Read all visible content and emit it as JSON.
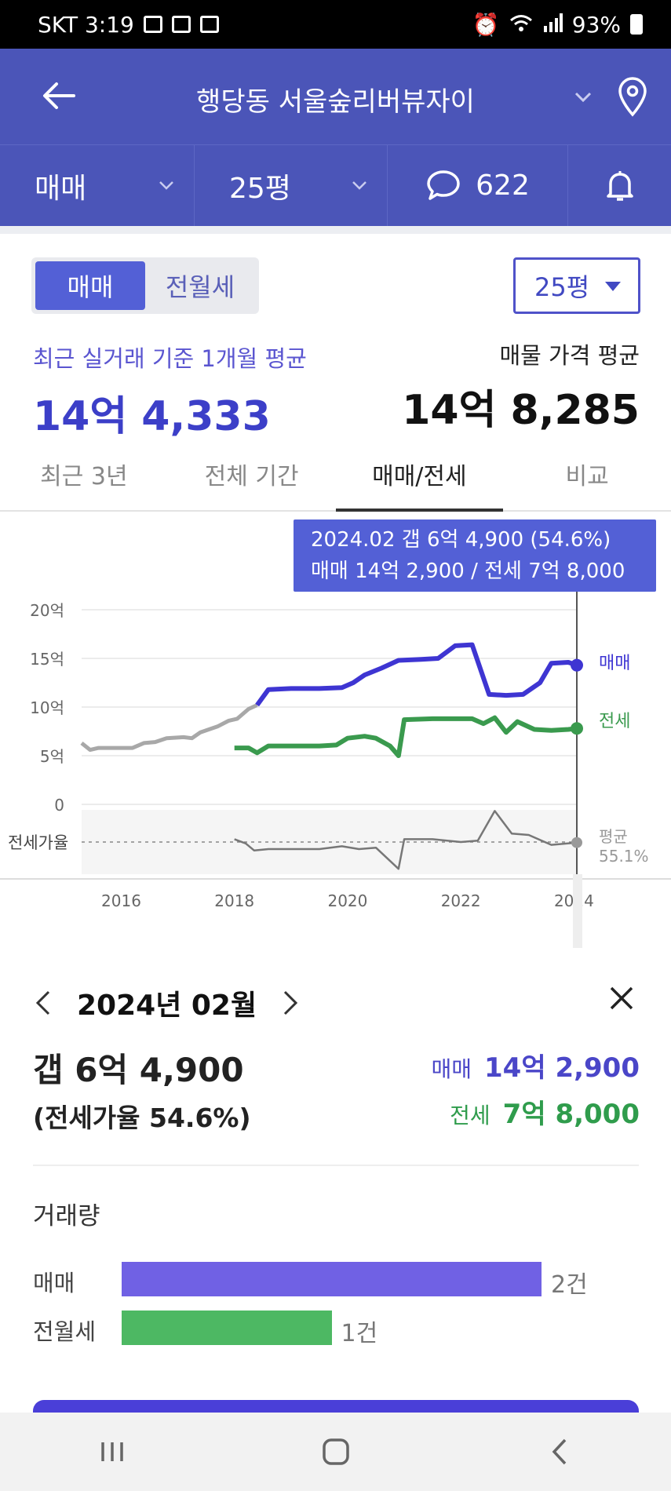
{
  "status_bar": {
    "carrier_time": "SKT 3:19",
    "battery": "93%"
  },
  "header": {
    "title": "행당동 서울숲리버뷰자이"
  },
  "subbar": {
    "deal_type": "매매",
    "size": "25평",
    "comment_count": "622"
  },
  "segment": {
    "options": [
      "매매",
      "전월세"
    ],
    "selected": "매매"
  },
  "size_select": {
    "value": "25평"
  },
  "summary": {
    "recent_label": "최근 실거래 기준 1개월 평균",
    "recent_value": "14억 4,333",
    "listing_label": "매물 가격 평균",
    "listing_value": "14억 8,285"
  },
  "tabs": [
    "최근 3년",
    "전체 기간",
    "매매/전세",
    "비교"
  ],
  "tooltip": {
    "line1": "2024.02  갭 6억 4,900 (54.6%)",
    "line2": "매매 14억 2,900 / 전세 7억 8,000"
  },
  "chart_data": {
    "type": "line",
    "y_ticks": [
      "20억",
      "15억",
      "10억",
      "5억",
      "0"
    ],
    "x_ticks": [
      "2016",
      "2018",
      "2020",
      "2022",
      "2024"
    ],
    "ratio_label": "전세가율",
    "avg_label": "평균",
    "avg_value": "55.1%",
    "series_labels": {
      "sale": "매매",
      "jeonse": "전세"
    },
    "colors": {
      "sale": "#3e35d2",
      "jeonse": "#3a9a4e",
      "history": "#a8a8a8",
      "ratio": "#777777"
    },
    "ylim": [
      0,
      20
    ],
    "xlim": [
      2015.3,
      2024.5
    ],
    "history": {
      "x": [
        2015.3,
        2015.45,
        2015.6,
        2016.0,
        2016.2,
        2016.4,
        2016.6,
        2016.8,
        2017.1,
        2017.25,
        2017.4,
        2017.7,
        2017.9,
        2018.05,
        2018.25,
        2018.4
      ],
      "y": [
        6.3,
        5.6,
        5.8,
        5.8,
        5.8,
        6.3,
        6.4,
        6.8,
        6.9,
        6.8,
        7.4,
        8.0,
        8.6,
        8.8,
        9.8,
        10.2
      ]
    },
    "sale": {
      "x": [
        2018.4,
        2018.6,
        2019.0,
        2019.5,
        2019.9,
        2020.1,
        2020.3,
        2020.6,
        2020.9,
        2021.3,
        2021.6,
        2021.9,
        2022.2,
        2022.5,
        2022.8,
        2023.1,
        2023.4,
        2023.6,
        2023.9,
        2024.05
      ],
      "y": [
        10.2,
        11.8,
        11.9,
        11.9,
        12.0,
        12.5,
        13.3,
        14.0,
        14.8,
        14.9,
        15.0,
        16.3,
        16.4,
        11.3,
        11.2,
        11.3,
        12.5,
        14.5,
        14.6,
        14.3
      ]
    },
    "jeonse": {
      "x": [
        2018.0,
        2018.25,
        2018.4,
        2018.6,
        2019.0,
        2019.5,
        2019.8,
        2020.0,
        2020.3,
        2020.5,
        2020.75,
        2020.9,
        2021.0,
        2021.5,
        2022.0,
        2022.2,
        2022.4,
        2022.6,
        2022.8,
        2023.0,
        2023.3,
        2023.6,
        2023.9,
        2024.05
      ],
      "y": [
        5.8,
        5.8,
        5.3,
        6.0,
        6.0,
        6.0,
        6.1,
        6.8,
        7.0,
        6.8,
        6.0,
        5.0,
        8.7,
        8.8,
        8.8,
        8.8,
        8.3,
        8.9,
        7.4,
        8.5,
        7.7,
        7.6,
        7.7,
        7.8
      ]
    },
    "gap_ratio": {
      "x": [
        2018.0,
        2018.2,
        2018.35,
        2018.6,
        2019.0,
        2019.5,
        2019.9,
        2020.2,
        2020.5,
        2020.9,
        2021.0,
        2021.5,
        2022.0,
        2022.3,
        2022.6,
        2022.9,
        2023.2,
        2023.6,
        2024.05
      ],
      "y": [
        57,
        54,
        49,
        50,
        50,
        50,
        52,
        50,
        51,
        36,
        57,
        57,
        55,
        56,
        77,
        61,
        60,
        53,
        54.6
      ]
    }
  },
  "detail": {
    "date": "2024년 02월",
    "gap": "갭 6억 4,900",
    "ratio": "(전세가율 54.6%)",
    "sale_label": "매매",
    "sale_value": "14억 2,900",
    "jeonse_label": "전세",
    "jeonse_value": "7억 8,000"
  },
  "volume": {
    "title": "거래량",
    "max": 2,
    "rows": [
      {
        "label": "매매",
        "count": 2,
        "count_text": "2건",
        "color": "#7061e4"
      },
      {
        "label": "전월세",
        "count": 1,
        "count_text": "1건",
        "color": "#4db863"
      }
    ]
  }
}
